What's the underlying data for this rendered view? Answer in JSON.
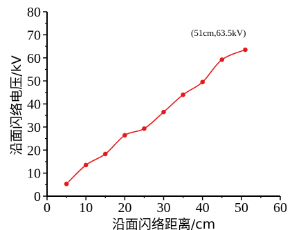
{
  "chart_data": {
    "type": "line",
    "xlabel": "沿面闪络距离/cm",
    "ylabel": "沿面闪络电压/kV",
    "xlim": [
      0,
      60
    ],
    "ylim": [
      0,
      80
    ],
    "x_ticks": [
      "0",
      "10",
      "20",
      "30",
      "40",
      "50",
      "60"
    ],
    "y_ticks": [
      "0",
      "10",
      "20",
      "30",
      "40",
      "50",
      "60",
      "70",
      "80"
    ],
    "grid": false,
    "series": [
      {
        "color": "#e31a1c",
        "x": [
          5,
          10,
          15,
          20,
          25,
          30,
          35,
          40,
          45,
          51
        ],
        "y": [
          5.3,
          13.5,
          18.3,
          26.4,
          29.3,
          36.5,
          44.0,
          49.5,
          59.2,
          63.5
        ]
      }
    ],
    "annotation": "(51cm,63.5kV)"
  }
}
